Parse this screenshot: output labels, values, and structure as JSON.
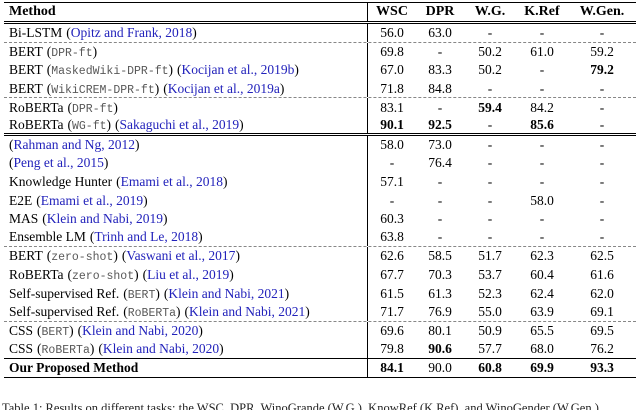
{
  "colors": {
    "citation_blue": "#2222bb",
    "mono_gray": "#585858",
    "rule_black": "#000000"
  },
  "table": {
    "columns": [
      "Method",
      "WSC",
      "DPR",
      "W.G.",
      "K.Ref",
      "W.Gen."
    ],
    "rows": [
      {
        "name": "Bi-LSTM",
        "mono": "",
        "cite": "Opitz and Frank, 2018",
        "values": [
          "56.0",
          "63.0",
          "-",
          "-",
          "-"
        ],
        "bold": [
          0,
          0,
          0,
          0,
          0
        ],
        "name_bold": false,
        "sep": "dashed"
      },
      {
        "name": "BERT",
        "mono": "DPR-ft",
        "cite": "",
        "values": [
          "69.8",
          "-",
          "50.2",
          "61.0",
          "59.2"
        ],
        "bold": [
          0,
          0,
          0,
          0,
          0
        ],
        "name_bold": false,
        "sep": "none"
      },
      {
        "name": "BERT",
        "mono": "MaskedWiki-DPR-ft",
        "cite": "Kocijan et al., 2019b",
        "values": [
          "67.0",
          "83.3",
          "50.2",
          "-",
          "79.2"
        ],
        "bold": [
          0,
          0,
          0,
          0,
          1
        ],
        "name_bold": false,
        "sep": "none"
      },
      {
        "name": "BERT",
        "mono": "WikiCREM-DPR-ft",
        "cite": "Kocijan et al., 2019a",
        "values": [
          "71.8",
          "84.8",
          "-",
          "-",
          "-"
        ],
        "bold": [
          0,
          0,
          0,
          0,
          0
        ],
        "name_bold": false,
        "sep": "dashed"
      },
      {
        "name": "RoBERTa",
        "mono": "DPR-ft",
        "cite": "",
        "values": [
          "83.1",
          "-",
          "59.4",
          "84.2",
          "-"
        ],
        "bold": [
          0,
          0,
          1,
          0,
          0
        ],
        "name_bold": false,
        "sep": "none"
      },
      {
        "name": "RoBERTa",
        "mono": "WG-ft",
        "cite": "Sakaguchi et al., 2019",
        "values": [
          "90.1",
          "92.5",
          "-",
          "85.6",
          "-"
        ],
        "bold": [
          1,
          1,
          0,
          1,
          0
        ],
        "name_bold": false,
        "sep": "double"
      },
      {
        "name": "",
        "mono": "",
        "cite": "Rahman and Ng, 2012",
        "values": [
          "58.0",
          "73.0",
          "-",
          "-",
          "-"
        ],
        "bold": [
          0,
          0,
          0,
          0,
          0
        ],
        "name_bold": false,
        "sep": "none"
      },
      {
        "name": "",
        "mono": "",
        "cite": "Peng et al., 2015",
        "values": [
          "-",
          "76.4",
          "-",
          "-",
          "-"
        ],
        "bold": [
          0,
          0,
          0,
          0,
          0
        ],
        "name_bold": false,
        "sep": "none"
      },
      {
        "name": "Knowledge Hunter",
        "mono": "",
        "cite": "Emami et al., 2018",
        "values": [
          "57.1",
          "-",
          "-",
          "-",
          "-"
        ],
        "bold": [
          0,
          0,
          0,
          0,
          0
        ],
        "name_bold": false,
        "sep": "none"
      },
      {
        "name": "E2E",
        "mono": "",
        "cite": "Emami et al., 2019",
        "values": [
          "-",
          "-",
          "-",
          "58.0",
          "-"
        ],
        "bold": [
          0,
          0,
          0,
          0,
          0
        ],
        "name_bold": false,
        "sep": "none"
      },
      {
        "name": "MAS",
        "mono": "",
        "cite": "Klein and Nabi, 2019",
        "values": [
          "60.3",
          "-",
          "-",
          "-",
          "-"
        ],
        "bold": [
          0,
          0,
          0,
          0,
          0
        ],
        "name_bold": false,
        "sep": "none"
      },
      {
        "name": "Ensemble LM",
        "mono": "",
        "cite": "Trinh and Le, 2018",
        "values": [
          "63.8",
          "-",
          "-",
          "-",
          "-"
        ],
        "bold": [
          0,
          0,
          0,
          0,
          0
        ],
        "name_bold": false,
        "sep": "dashed"
      },
      {
        "name": "BERT",
        "mono": "zero-shot",
        "cite": "Vaswani et al., 2017",
        "values": [
          "62.6",
          "58.5",
          "51.7",
          "62.3",
          "62.5"
        ],
        "bold": [
          0,
          0,
          0,
          0,
          0
        ],
        "name_bold": false,
        "sep": "none"
      },
      {
        "name": "RoBERTa",
        "mono": "zero-shot",
        "cite": "Liu et al., 2019",
        "values": [
          "67.7",
          "70.3",
          "53.7",
          "60.4",
          "61.6"
        ],
        "bold": [
          0,
          0,
          0,
          0,
          0
        ],
        "name_bold": false,
        "sep": "none"
      },
      {
        "name": "Self-supervised Ref.",
        "mono": "BERT",
        "cite": "Klein and Nabi, 2021",
        "values": [
          "61.5",
          "61.3",
          "52.3",
          "62.4",
          "62.0"
        ],
        "bold": [
          0,
          0,
          0,
          0,
          0
        ],
        "name_bold": false,
        "sep": "none"
      },
      {
        "name": "Self-supervised Ref.",
        "mono": "RoBERTa",
        "cite": "Klein and Nabi, 2021",
        "values": [
          "71.7",
          "76.9",
          "55.0",
          "63.9",
          "69.1"
        ],
        "bold": [
          0,
          0,
          0,
          0,
          0
        ],
        "name_bold": false,
        "sep": "dashed"
      },
      {
        "name": "CSS",
        "mono": "BERT",
        "cite": "Klein and Nabi, 2020",
        "values": [
          "69.6",
          "80.1",
          "50.9",
          "65.5",
          "69.5"
        ],
        "bold": [
          0,
          0,
          0,
          0,
          0
        ],
        "name_bold": false,
        "sep": "none"
      },
      {
        "name": "CSS",
        "mono": "RoBERTa",
        "cite": "Klein and Nabi, 2020",
        "values": [
          "79.8",
          "90.6",
          "57.7",
          "68.0",
          "76.2"
        ],
        "bold": [
          0,
          1,
          0,
          0,
          0
        ],
        "name_bold": false,
        "sep": "solid"
      },
      {
        "name": "Our Proposed Method",
        "mono": "",
        "cite": "",
        "values": [
          "84.1",
          "90.0",
          "60.8",
          "69.9",
          "93.3"
        ],
        "bold": [
          1,
          0,
          1,
          1,
          1
        ],
        "name_bold": true,
        "sep": "none"
      }
    ]
  },
  "caption": "Table 1: Results on different tasks: the WSC, DPR, WinoGrande (W.G.), KnowRef (K.Ref), and WinoGender (W.Gen.)."
}
